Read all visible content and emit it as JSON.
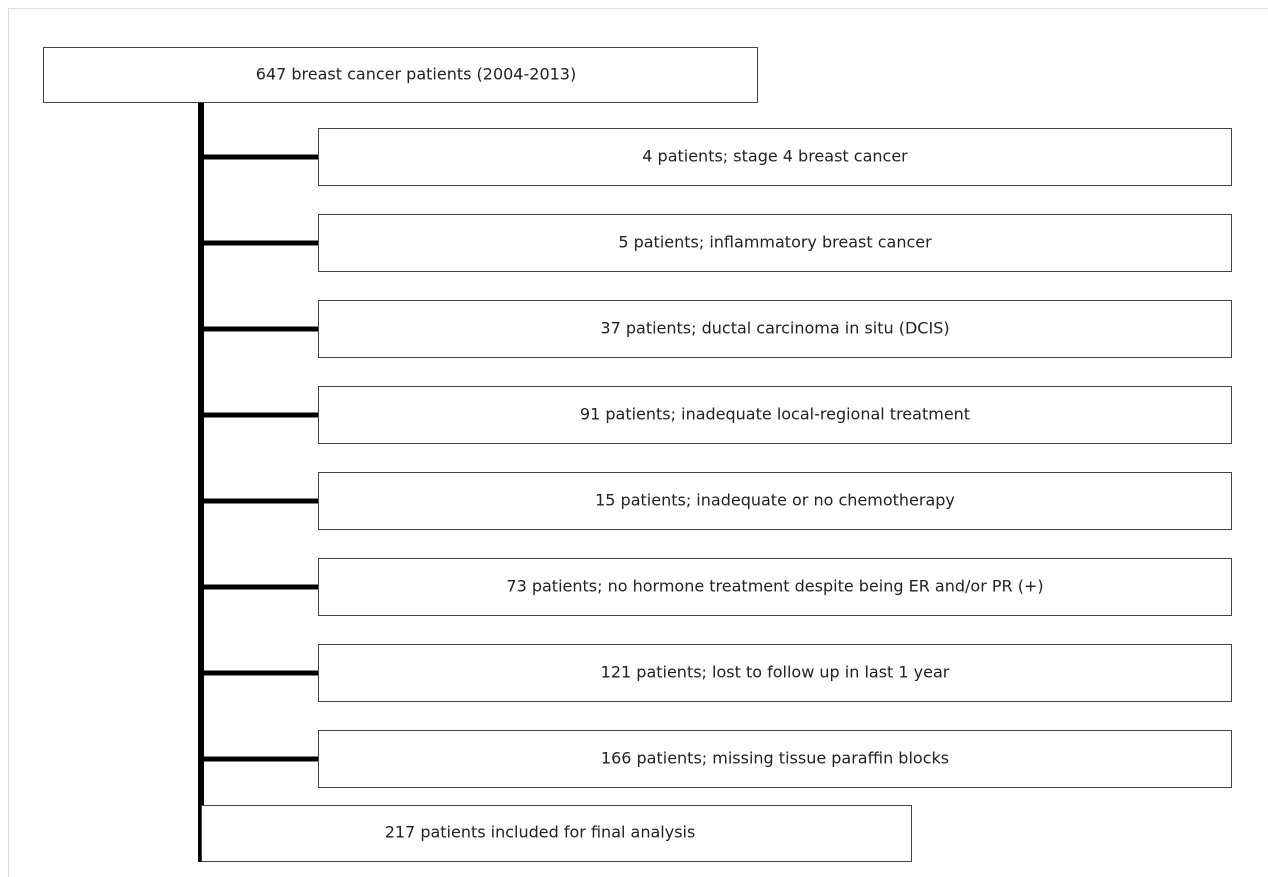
{
  "flowchart": {
    "source": {
      "label": "647 breast cancer patients (2004-2013)"
    },
    "exclusions": [
      {
        "label": "4 patients; stage 4 breast cancer"
      },
      {
        "label": "5 patients; inflammatory breast cancer"
      },
      {
        "label": "37 patients; ductal carcinoma in situ (DCIS)"
      },
      {
        "label": "91 patients; inadequate local-regional treatment"
      },
      {
        "label": "15 patients; inadequate or no chemotherapy"
      },
      {
        "label": "73 patients; no hormone treatment despite being ER and/or PR (+)"
      },
      {
        "label": "121 patients; lost to follow up in last 1 year"
      },
      {
        "label": "166 patients; missing tissue paraffin blocks"
      }
    ],
    "result": {
      "label": "217 patients included for final analysis"
    }
  }
}
